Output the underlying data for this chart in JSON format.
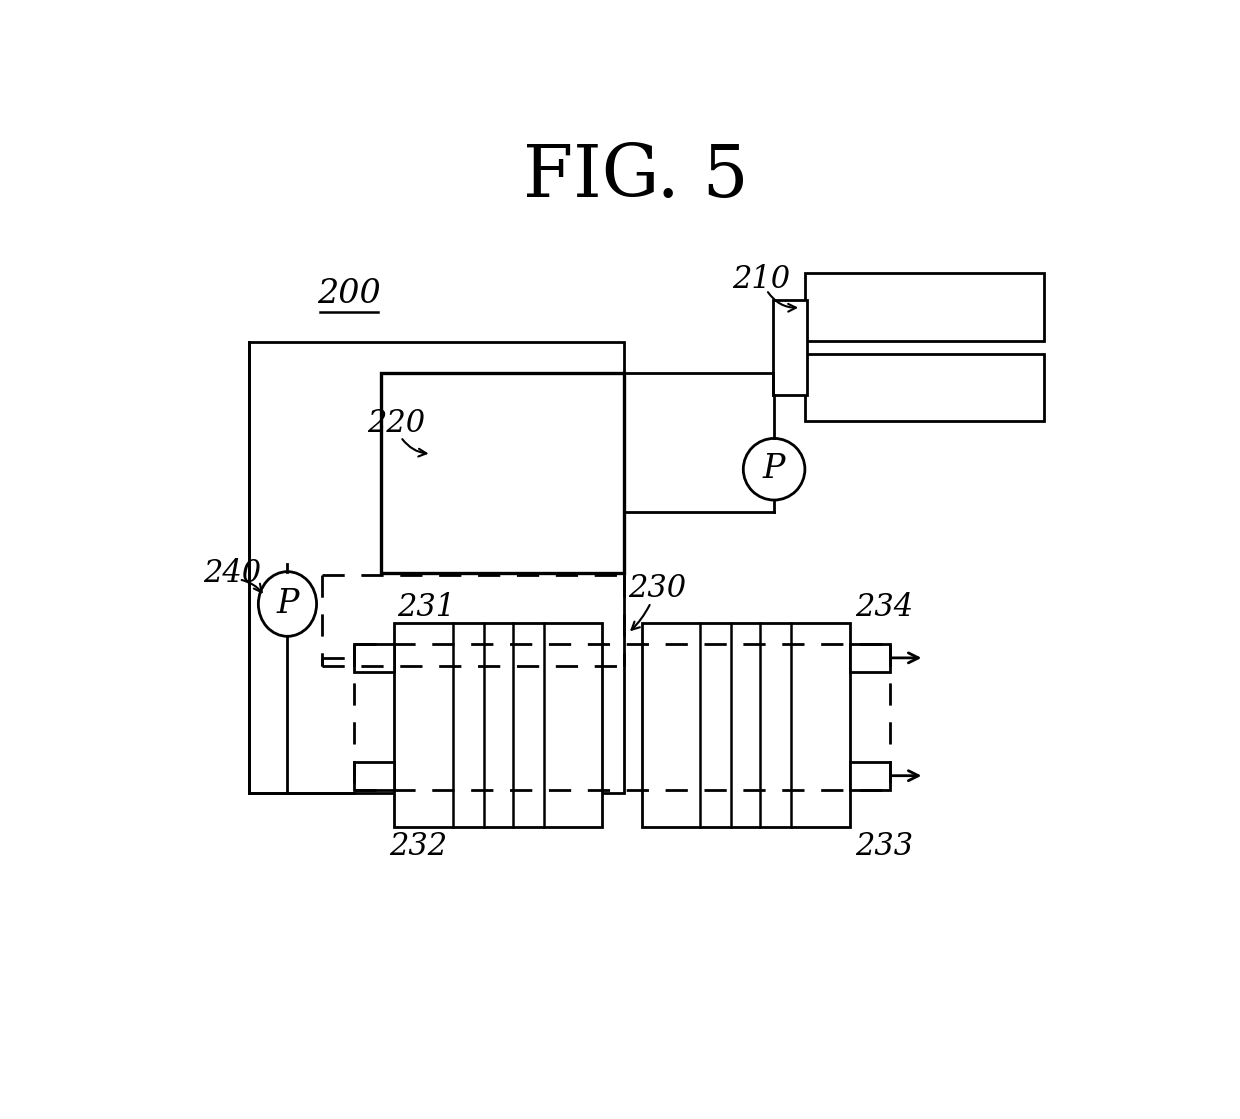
{
  "title": "FIG. 5",
  "title_fontsize": 52,
  "bg_color": "#ffffff",
  "line_color": "#000000",
  "lw": 2.0,
  "label_200": "200",
  "label_210": "210",
  "label_220": "220",
  "label_230": "230",
  "label_231": "231",
  "label_232": "232",
  "label_233": "233",
  "label_234": "234",
  "label_240": "240",
  "label_P": "P",
  "label_fs": 22
}
